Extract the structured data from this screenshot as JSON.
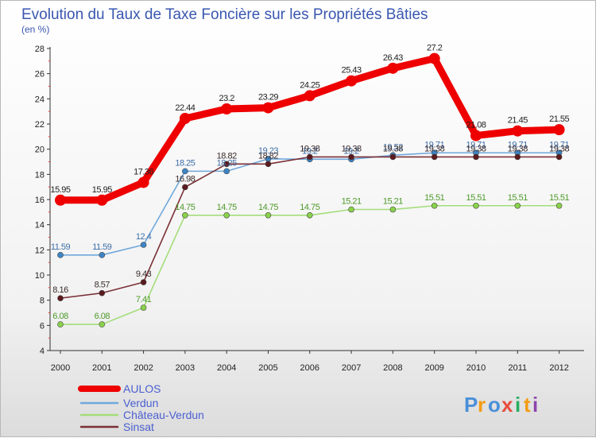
{
  "chart_data": {
    "type": "line",
    "title": "Evolution du Taux de Taxe Foncière sur les Propriétés Bâties",
    "subtitle": "(en %)",
    "x": [
      "2000",
      "2001",
      "2002",
      "2003",
      "2004",
      "2005",
      "2006",
      "2007",
      "2008",
      "2009",
      "2010",
      "2011",
      "2012"
    ],
    "ylim": [
      4,
      28
    ],
    "yticks": [
      4,
      6,
      8,
      10,
      12,
      14,
      16,
      18,
      20,
      22,
      24,
      26,
      28
    ],
    "grid": false,
    "legend_position": "bottom-left",
    "series": [
      {
        "name": "AULOS",
        "color": "#ee0000",
        "values": [
          15.95,
          15.95,
          17.36,
          22.44,
          23.2,
          23.29,
          24.25,
          25.43,
          26.43,
          27.2,
          21.08,
          21.45,
          21.55
        ],
        "labels": [
          "15.95",
          "15.95",
          "17.36",
          "22.44",
          "23.2",
          "23.29",
          "24.25",
          "25.43",
          "26.43",
          "27.2",
          "21.08",
          "21.45",
          "21.55"
        ]
      },
      {
        "name": "Verdun",
        "color": "#6fa8dc",
        "marker_color": "#3d85c6",
        "values": [
          11.59,
          11.59,
          12.4,
          18.25,
          18.25,
          19.23,
          19.2,
          19.2,
          19.52,
          19.71,
          19.71,
          19.71,
          19.71
        ],
        "labels": [
          "11.59",
          "11.59",
          "12.4",
          "18.25",
          "18.25",
          "19.23",
          "19.2",
          "19.2",
          "19.52",
          "19.71",
          "19.71",
          "19.71",
          "19.71"
        ]
      },
      {
        "name": "Château-Verdun",
        "color": "#a4dd7a",
        "marker_color": "#8ad24a",
        "values": [
          6.08,
          6.08,
          7.41,
          14.75,
          14.75,
          14.75,
          14.75,
          15.21,
          15.21,
          15.51,
          15.51,
          15.51,
          15.51
        ],
        "labels": [
          "6.08",
          "6.08",
          "7.41",
          "14.75",
          "14.75",
          "14.75",
          "14.75",
          "15.21",
          "15.21",
          "15.51",
          "15.51",
          "15.51",
          "15.51"
        ]
      },
      {
        "name": "Sinsat",
        "color": "#7b3035",
        "marker_color": "#5b1a1e",
        "values": [
          8.16,
          8.57,
          9.43,
          16.98,
          18.82,
          18.82,
          19.38,
          19.38,
          19.38,
          19.38,
          19.38,
          19.38,
          19.38
        ],
        "labels": [
          "8.16",
          "8.57",
          "9.43",
          "16.98",
          "18.82",
          "18.82",
          "19.38",
          "19.38",
          "19.38",
          "19.38",
          "19.38",
          "19.38",
          "19.38"
        ]
      }
    ]
  },
  "logo": {
    "letters": [
      "P",
      "r",
      "o",
      "x",
      "i",
      "t",
      "i"
    ],
    "colors": [
      "#4a90d9",
      "#f39c12",
      "#4a90d9",
      "#e74c3c",
      "#27ae60",
      "#f39c12",
      "#8e44ad"
    ]
  }
}
